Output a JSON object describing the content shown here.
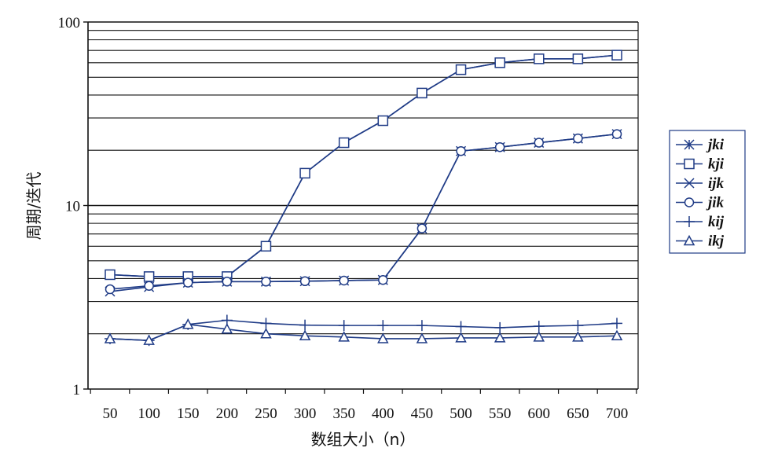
{
  "chart_data": {
    "type": "line",
    "xlabel": "数组大小（n）",
    "ylabel": "周期/迭代",
    "x": [
      50,
      100,
      150,
      200,
      250,
      300,
      350,
      400,
      450,
      500,
      550,
      600,
      650,
      700
    ],
    "x_tick_labels": [
      "50",
      "100",
      "150",
      "200",
      "250",
      "300",
      "350",
      "400",
      "450",
      "500",
      "550",
      "600",
      "650",
      "700"
    ],
    "y_scale": "log",
    "ylim": [
      1,
      100
    ],
    "y_tick_labels": [
      "1",
      "10",
      "100"
    ],
    "grid": "horizontal",
    "legend_position": "right",
    "series": [
      {
        "name": "jki",
        "marker": "asterisk",
        "values": [
          4.2,
          4.1,
          4.1,
          4.1,
          6.0,
          15.0,
          22.0,
          29.0,
          41.0,
          55.0,
          60.0,
          63.0,
          63.0,
          66.0
        ]
      },
      {
        "name": "kji",
        "marker": "square",
        "values": [
          4.2,
          4.1,
          4.1,
          4.1,
          6.0,
          15.0,
          22.0,
          29.0,
          41.0,
          55.0,
          60.0,
          63.0,
          63.0,
          66.0
        ]
      },
      {
        "name": "ijk",
        "marker": "x",
        "values": [
          3.4,
          3.6,
          3.8,
          3.85,
          3.85,
          3.87,
          3.9,
          3.93,
          7.5,
          19.8,
          20.8,
          22.0,
          23.2,
          24.5
        ]
      },
      {
        "name": "jik",
        "marker": "circle",
        "values": [
          3.5,
          3.65,
          3.8,
          3.85,
          3.85,
          3.87,
          3.9,
          3.93,
          7.5,
          19.8,
          20.8,
          22.0,
          23.2,
          24.5
        ]
      },
      {
        "name": "kij",
        "marker": "plus",
        "values": [
          1.88,
          1.84,
          2.25,
          2.37,
          2.28,
          2.23,
          2.22,
          2.22,
          2.22,
          2.19,
          2.16,
          2.2,
          2.22,
          2.28
        ]
      },
      {
        "name": "ikj",
        "marker": "triangle",
        "values": [
          1.88,
          1.84,
          2.25,
          2.12,
          2.0,
          1.95,
          1.92,
          1.88,
          1.88,
          1.9,
          1.9,
          1.92,
          1.92,
          1.95
        ]
      }
    ]
  }
}
